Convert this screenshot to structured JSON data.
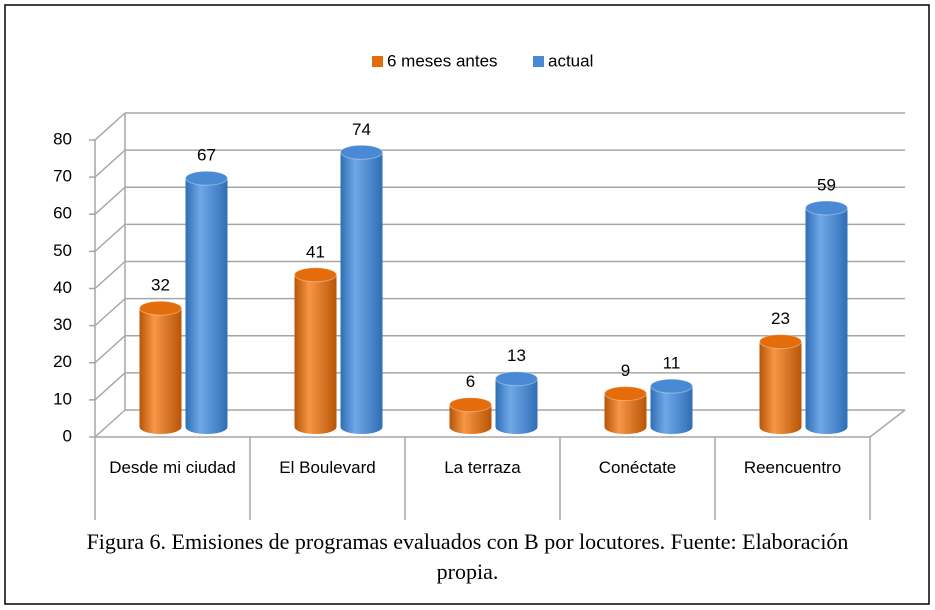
{
  "chart_data": {
    "type": "bar3d",
    "caption": "Figura 6. Emisiones de programas evaluados con B por locutores. Fuente: Elaboración propia.",
    "categories": [
      "Desde mi ciudad",
      "El Boulevard",
      "La terraza",
      "Conéctate",
      "Reencuentro"
    ],
    "series": [
      {
        "name": "6 meses antes",
        "color": "#e46c0a",
        "values": [
          32,
          41,
          6,
          9,
          23
        ]
      },
      {
        "name": "actual",
        "color": "#4a8ad4",
        "values": [
          67,
          74,
          13,
          11,
          59
        ]
      }
    ],
    "ylim": [
      0,
      80
    ],
    "yticks": [
      0,
      10,
      20,
      30,
      40,
      50,
      60,
      70,
      80
    ],
    "grid": true,
    "legend": "top"
  }
}
